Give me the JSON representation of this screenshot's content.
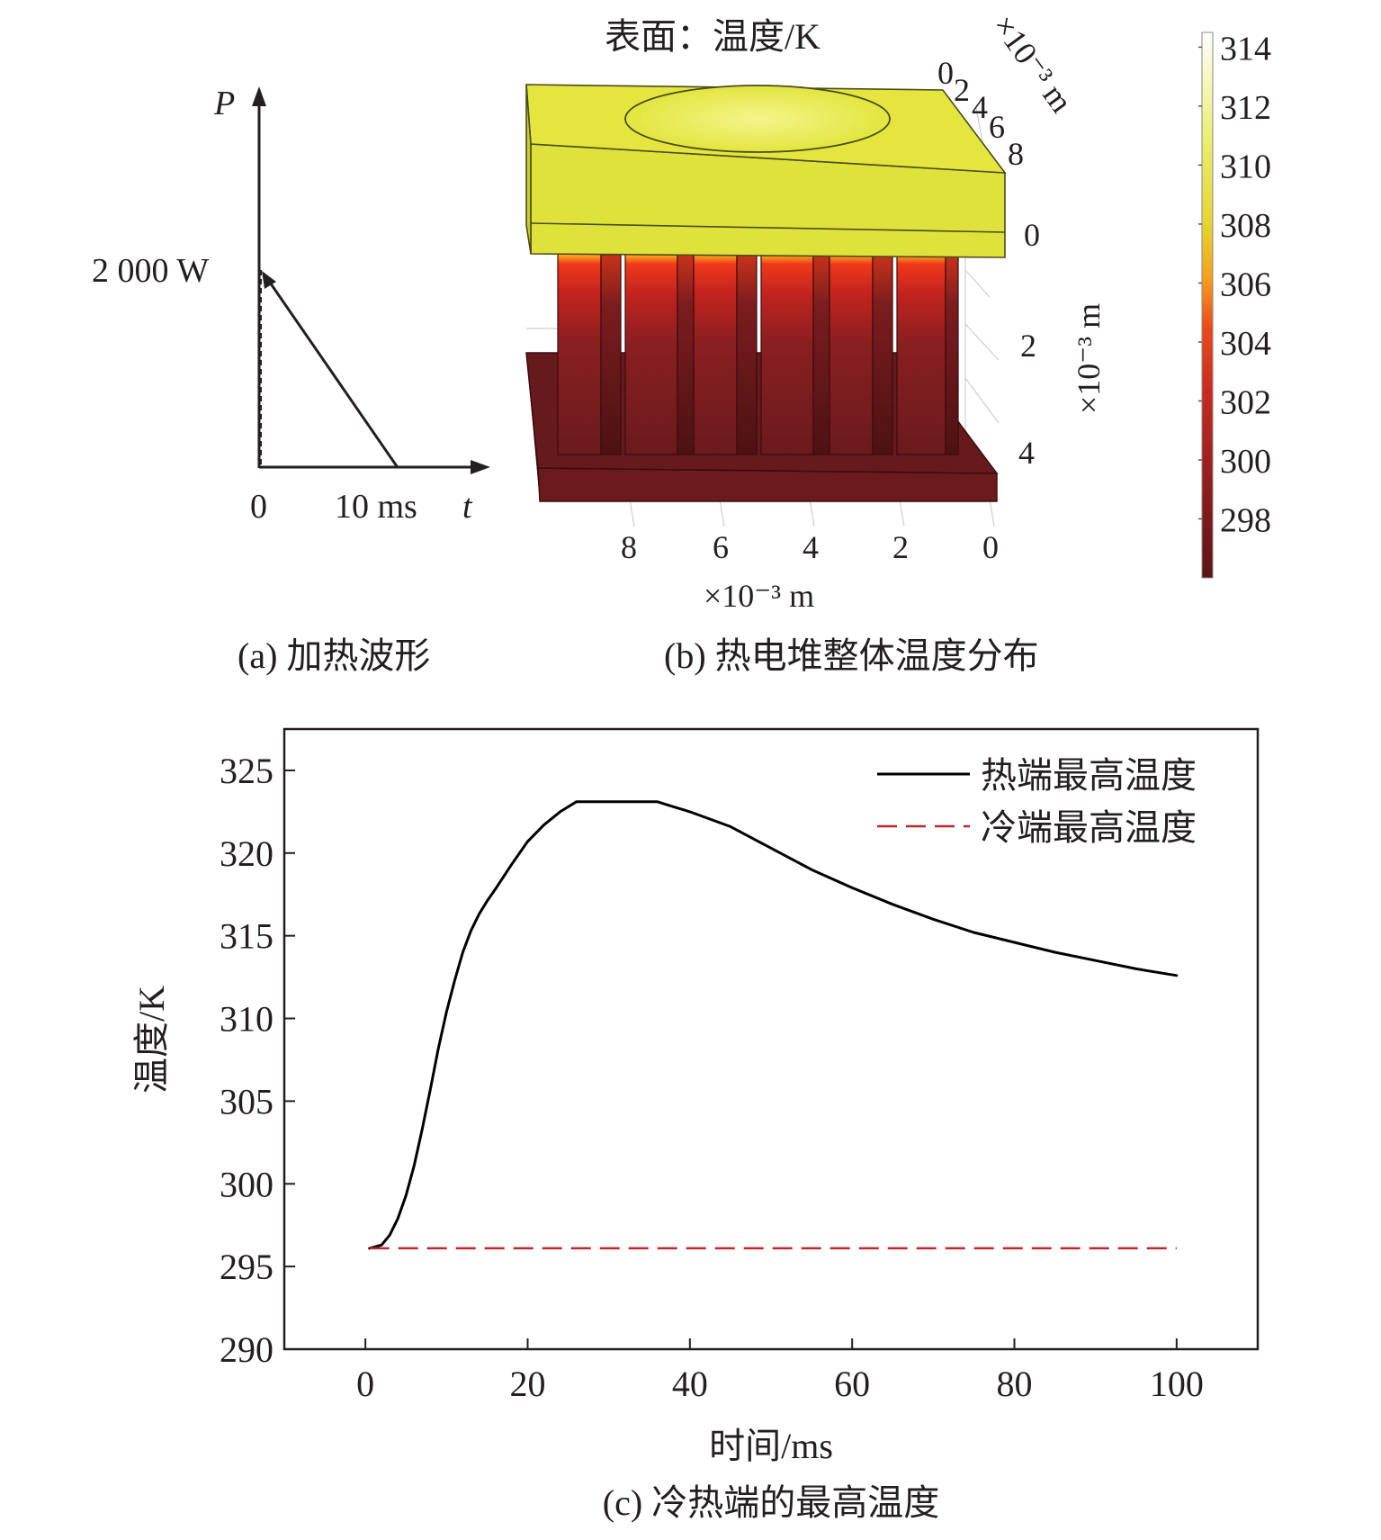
{
  "panel_a": {
    "y_axis_symbol": "P",
    "x_axis_symbol": "t",
    "peak_label": "2 000 W",
    "origin_label": "0",
    "end_time_label": "10 ms",
    "caption": "(a) 加热波形",
    "waveform": {
      "peak_power_w": 2000,
      "duration_ms": 10
    }
  },
  "panel_b": {
    "title": "表面：温度/K",
    "caption": "(b) 热电堆整体温度分布",
    "axis_y_ticks": [
      "0",
      "2",
      "4",
      "6",
      "8"
    ],
    "axis_y_unit": "×10⁻³ m",
    "axis_z_ticks": [
      "0",
      "2",
      "4"
    ],
    "axis_z_unit": "×10⁻³ m",
    "axis_x_ticks": [
      "8",
      "6",
      "4",
      "2",
      "0"
    ],
    "axis_x_unit": "×10⁻³ m",
    "colorbar_ticks": [
      "314",
      "312",
      "310",
      "308",
      "306",
      "304",
      "302",
      "300",
      "298"
    ],
    "colorbar_range": [
      296,
      314.5
    ],
    "colors": {
      "hot_plate": "#e2e43a",
      "leg_top": "#f0391c",
      "leg_body": "#6e1a1d",
      "base": "#6b1a1e"
    }
  },
  "chart_data": {
    "type": "line",
    "caption": "(c) 冷热端的最高温度",
    "xlabel": "时间/ms",
    "ylabel": "温度/K",
    "xlim": [
      -10,
      110
    ],
    "ylim": [
      290,
      327.5
    ],
    "xticks": [
      0,
      20,
      40,
      60,
      80,
      100
    ],
    "yticks": [
      290,
      295,
      300,
      305,
      310,
      315,
      320,
      325
    ],
    "legend_position": "top-right",
    "series": [
      {
        "name": "热端最高温度",
        "color": "#000000",
        "style": "solid",
        "x": [
          0.5,
          2,
          3,
          4,
          5,
          6,
          7,
          8,
          9,
          10,
          11,
          12,
          13,
          14,
          15,
          16,
          18,
          20,
          22,
          24,
          26,
          28,
          30,
          32,
          34,
          36,
          38,
          40,
          45,
          50,
          55,
          60,
          65,
          70,
          75,
          80,
          85,
          90,
          95,
          100
        ],
        "y": [
          296.1,
          296.3,
          296.9,
          297.9,
          299.3,
          301.1,
          303.3,
          305.7,
          308.2,
          310.4,
          312.3,
          314,
          315.3,
          316.3,
          317.1,
          317.8,
          319.3,
          320.7,
          321.7,
          322.5,
          323.1,
          323.1,
          323.1,
          323.1,
          323.1,
          323.1,
          322.8,
          322.5,
          321.6,
          320.3,
          319,
          317.9,
          316.9,
          316,
          315.2,
          314.6,
          314,
          313.5,
          313,
          312.6
        ]
      },
      {
        "name": "冷端最高温度",
        "color": "#c0272d",
        "style": "dashed",
        "x": [
          0.5,
          100
        ],
        "y": [
          296.1,
          296.1
        ]
      }
    ]
  }
}
